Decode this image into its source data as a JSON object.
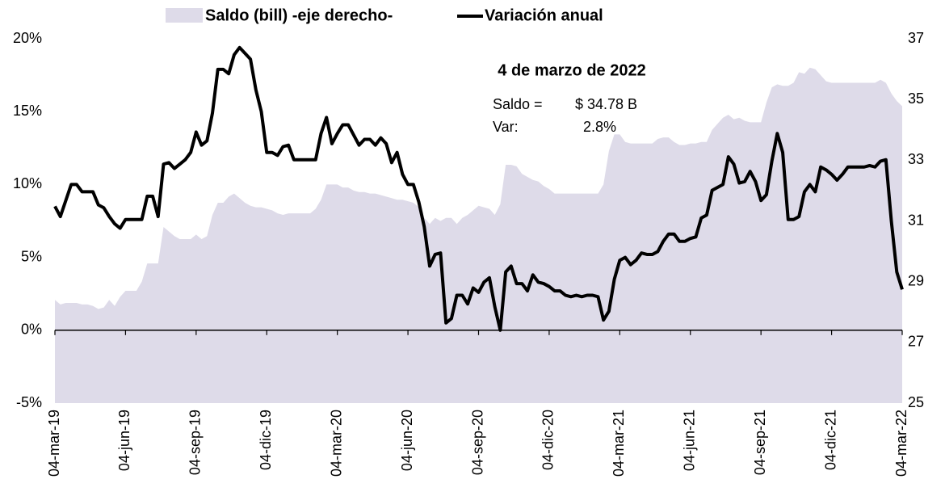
{
  "chart_data": {
    "type": "line",
    "legend": {
      "position": "top"
    },
    "annotation": {
      "title": "4 de marzo de 2022",
      "lines": [
        [
          "Saldo =",
          "$ 34.78 B"
        ],
        [
          "Var:",
          "2.8%"
        ]
      ]
    },
    "categories": [
      "04-mar-19",
      null,
      null,
      null,
      null,
      null,
      null,
      null,
      null,
      null,
      null,
      null,
      null,
      "04-jun-19",
      null,
      null,
      null,
      null,
      null,
      null,
      null,
      null,
      null,
      null,
      null,
      null,
      "04-sep-19",
      null,
      null,
      null,
      null,
      null,
      null,
      null,
      null,
      null,
      null,
      null,
      null,
      "04-dic-19",
      null,
      null,
      null,
      null,
      null,
      null,
      null,
      null,
      null,
      null,
      null,
      null,
      "04-mar-20",
      null,
      null,
      null,
      null,
      null,
      null,
      null,
      null,
      null,
      null,
      null,
      null,
      "04-jun-20",
      null,
      null,
      null,
      null,
      null,
      null,
      null,
      null,
      null,
      null,
      null,
      null,
      "04-sep-20",
      null,
      null,
      null,
      null,
      null,
      null,
      null,
      null,
      null,
      null,
      null,
      null,
      "04-dic-20",
      null,
      null,
      null,
      null,
      null,
      null,
      null,
      null,
      null,
      null,
      null,
      null,
      "04-mar-21",
      null,
      null,
      null,
      null,
      null,
      null,
      null,
      null,
      null,
      null,
      null,
      null,
      "04-jun-21",
      null,
      null,
      null,
      null,
      null,
      null,
      null,
      null,
      null,
      null,
      null,
      null,
      "04-sep-21",
      null,
      null,
      null,
      null,
      null,
      null,
      null,
      null,
      null,
      null,
      null,
      null,
      "04-dic-21",
      null,
      null,
      null,
      null,
      null,
      null,
      null,
      null,
      null,
      null,
      null,
      null,
      "04-mar-22"
    ],
    "series": [
      {
        "name": "Saldo (bill) -eje derecho-",
        "type": "area",
        "axis": "y2",
        "color": "#dedbe9",
        "values": [
          28.4,
          28.25,
          28.3,
          28.3,
          28.3,
          28.25,
          28.25,
          28.2,
          28.1,
          28.15,
          28.4,
          28.2,
          28.5,
          28.7,
          28.7,
          28.7,
          29.0,
          29.6,
          29.6,
          29.6,
          30.8,
          30.65,
          30.5,
          30.4,
          30.4,
          30.4,
          30.55,
          30.4,
          30.5,
          31.2,
          31.6,
          31.6,
          31.8,
          31.9,
          31.75,
          31.6,
          31.5,
          31.45,
          31.45,
          31.4,
          31.35,
          31.25,
          31.2,
          31.25,
          31.25,
          31.25,
          31.25,
          31.25,
          31.4,
          31.7,
          32.2,
          32.2,
          32.2,
          32.1,
          32.1,
          32.0,
          31.95,
          31.95,
          31.9,
          31.9,
          31.85,
          31.8,
          31.75,
          31.7,
          31.7,
          31.65,
          31.6,
          31.45,
          31.1,
          30.9,
          31.1,
          31.0,
          31.1,
          31.1,
          30.9,
          31.1,
          31.2,
          31.35,
          31.5,
          31.45,
          31.4,
          31.2,
          31.55,
          32.85,
          32.85,
          32.8,
          32.55,
          32.45,
          32.35,
          32.3,
          32.15,
          32.05,
          31.9,
          31.9,
          31.9,
          31.9,
          31.9,
          31.9,
          31.9,
          31.9,
          31.9,
          32.2,
          33.3,
          33.85,
          33.85,
          33.6,
          33.55,
          33.55,
          33.55,
          33.55,
          33.55,
          33.7,
          33.75,
          33.75,
          33.6,
          33.5,
          33.5,
          33.55,
          33.55,
          33.6,
          33.6,
          34.0,
          34.2,
          34.4,
          34.5,
          34.35,
          34.4,
          34.3,
          34.25,
          34.25,
          34.25,
          34.9,
          35.4,
          35.5,
          35.45,
          35.45,
          35.55,
          35.9,
          35.85,
          36.05,
          36.0,
          35.8,
          35.6,
          35.55,
          35.55,
          35.55,
          35.55,
          35.55,
          35.55,
          35.55,
          35.55,
          35.55,
          35.65,
          35.55,
          35.2,
          34.95,
          34.78
        ]
      },
      {
        "name": "Variación anual",
        "type": "line",
        "color": "#000000",
        "values": [
          8.5,
          7.8,
          8.9,
          10,
          10,
          9.5,
          9.5,
          9.5,
          8.6,
          8.4,
          7.8,
          7.3,
          7.0,
          7.6,
          7.6,
          7.6,
          7.6,
          9.2,
          9.2,
          7.8,
          11.4,
          11.5,
          11.1,
          11.4,
          11.7,
          12.2,
          13.6,
          12.7,
          13.0,
          14.9,
          17.9,
          17.9,
          17.6,
          18.9,
          19.4,
          19.0,
          18.6,
          16.5,
          15.0,
          12.2,
          12.2,
          12.0,
          12.6,
          12.7,
          11.7,
          11.7,
          11.7,
          11.7,
          11.7,
          13.5,
          14.6,
          12.8,
          13.5,
          14.1,
          14.1,
          13.4,
          12.7,
          13.1,
          13.1,
          12.7,
          13.2,
          12.8,
          11.5,
          12.2,
          10.7,
          10.0,
          10.0,
          8.8,
          7.1,
          4.4,
          5.2,
          5.3,
          0.5,
          0.8,
          2.4,
          2.4,
          1.8,
          2.9,
          2.6,
          3.3,
          3.6,
          1.6,
          0.0,
          4.0,
          4.4,
          3.2,
          3.2,
          2.7,
          3.8,
          3.3,
          3.2,
          3.0,
          2.7,
          2.7,
          2.4,
          2.3,
          2.4,
          2.3,
          2.4,
          2.4,
          2.3,
          0.7,
          1.3,
          3.5,
          4.8,
          5.0,
          4.5,
          4.8,
          5.3,
          5.2,
          5.2,
          5.4,
          6.1,
          6.6,
          6.6,
          6.1,
          6.1,
          6.3,
          6.4,
          7.7,
          7.9,
          9.6,
          9.8,
          10.0,
          11.9,
          11.4,
          10.1,
          10.2,
          10.9,
          10.2,
          8.9,
          9.3,
          11.6,
          13.5,
          12.2,
          7.6,
          7.6,
          7.8,
          9.5,
          10.0,
          9.5,
          11.2,
          11.0,
          10.7,
          10.3,
          10.7,
          11.2,
          11.2,
          11.2,
          11.2,
          11.3,
          11.2,
          11.6,
          11.7,
          7.5,
          4.0,
          2.8
        ]
      }
    ],
    "ylim": [
      -5,
      20
    ],
    "yticks": [
      {
        "value": -5,
        "label": "-5%"
      },
      {
        "value": 0,
        "label": "0%"
      },
      {
        "value": 5,
        "label": "5%"
      },
      {
        "value": 10,
        "label": "10%"
      },
      {
        "value": 15,
        "label": "15%"
      },
      {
        "value": 20,
        "label": "20%"
      }
    ],
    "y2lim": [
      25,
      37
    ],
    "y2ticks": [
      25,
      27,
      29,
      31,
      33,
      35,
      37
    ],
    "grid": false
  }
}
